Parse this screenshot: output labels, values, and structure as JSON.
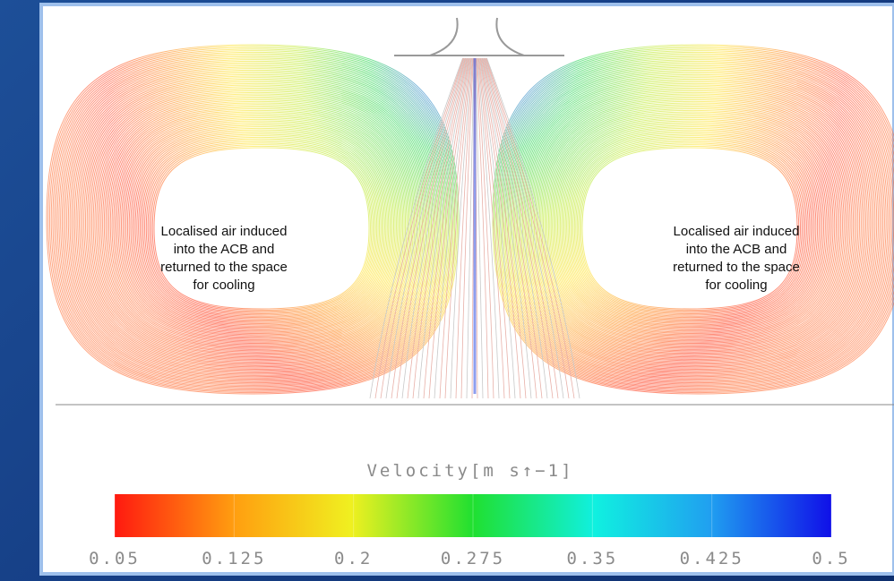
{
  "annotations": [
    {
      "lines": [
        "Localised air induced",
        "into the ACB and",
        "returned to the space",
        "for cooling"
      ]
    },
    {
      "lines": [
        "Localised air induced",
        "into the ACB and",
        "returned to the space",
        "for cooling"
      ]
    }
  ],
  "colorbar": {
    "title": "Velocity[m s↑−1]",
    "ticks": [
      0.05,
      0.125,
      0.2,
      0.275,
      0.35,
      0.425,
      0.5
    ]
  }
}
